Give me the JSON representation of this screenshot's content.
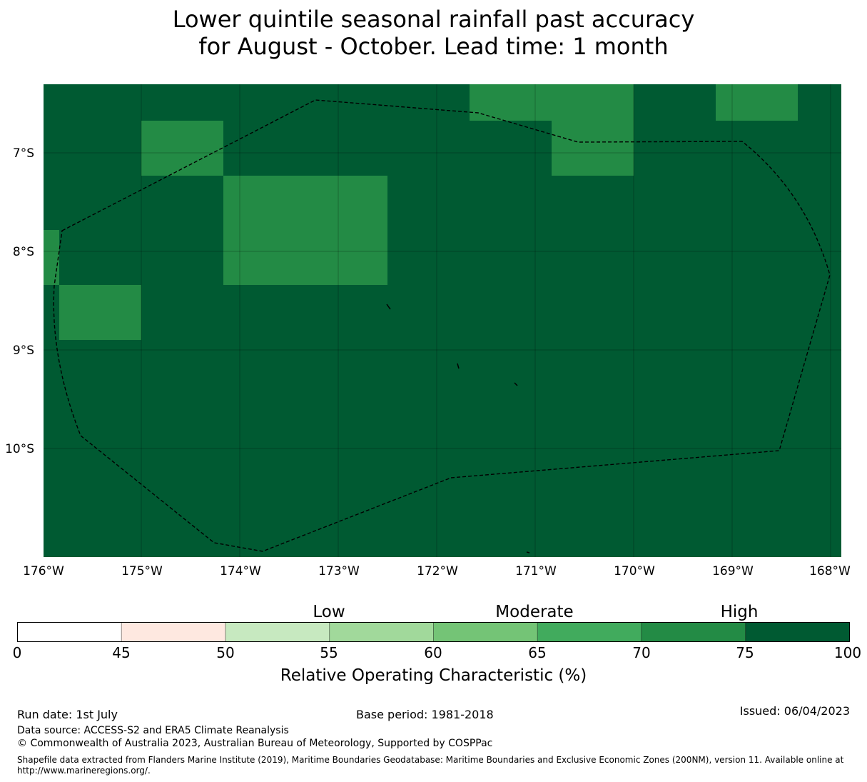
{
  "title": {
    "line1": "Lower quintile seasonal rainfall past accuracy",
    "line2": "for August - October. Lead time: 1 month"
  },
  "map": {
    "lon_labels": [
      "176°W",
      "175°W",
      "174°W",
      "173°W",
      "172°W",
      "171°W",
      "170°W",
      "169°W",
      "168°W"
    ],
    "lat_labels": [
      "7°S",
      "8°S",
      "9°S",
      "10°S"
    ],
    "base_color": "#005a32",
    "moderate_high_color": "#238b45",
    "boundary_style": "black dashed line (EEZ)"
  },
  "colorbar": {
    "categories": [
      "Low",
      "Moderate",
      "High"
    ],
    "ticks": [
      "0",
      "45",
      "50",
      "55",
      "60",
      "65",
      "70",
      "75",
      "100"
    ],
    "colors": [
      "#ffffff",
      "#fee8e0",
      "#c7e9c0",
      "#a1d99b",
      "#74c476",
      "#41ab5d",
      "#238b45",
      "#005a32"
    ],
    "label": "Relative Operating Characteristic (%)"
  },
  "footer": {
    "run_date": "Run date: 1st July",
    "base_period": "Base period: 1981-2018",
    "issued": "Issued: 06/04/2023",
    "data_source": "Data source: ACCESS-S2 and ERA5 Climate Reanalysis",
    "copyright": "© Commonwealth of Australia 2023, Australian Bureau of Meteorology, Supported by COSPPac",
    "shapefile": "Shapefile data extracted from Flanders Marine Institute (2019), Maritime Boundaries Geodatabase: Maritime Boundaries and Exclusive Economic Zones (200NM), version 11. Available online at http://www.marineregions.org/."
  }
}
